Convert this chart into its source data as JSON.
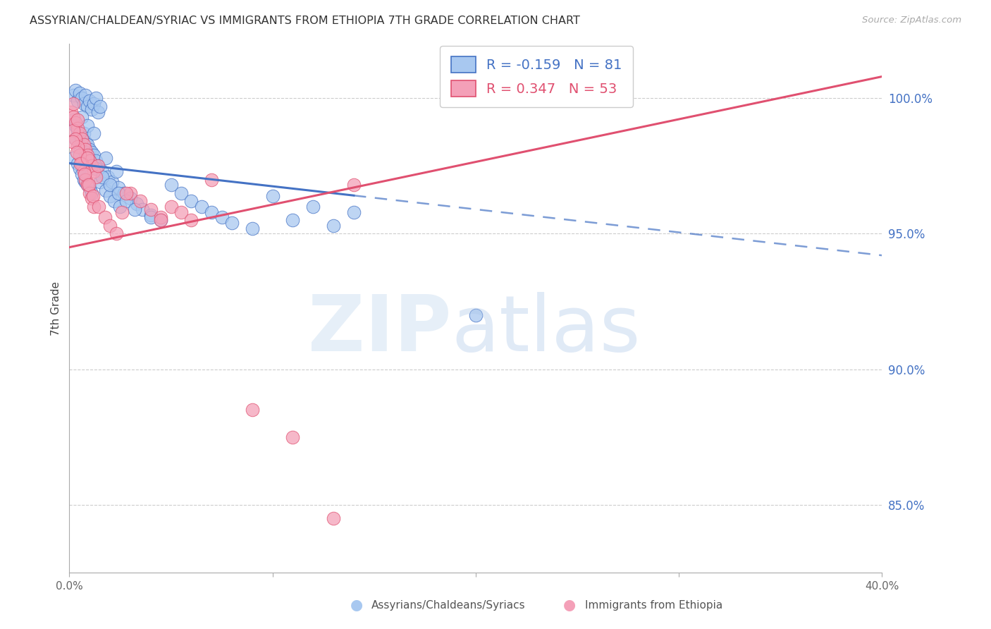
{
  "title": "ASSYRIAN/CHALDEAN/SYRIAC VS IMMIGRANTS FROM ETHIOPIA 7TH GRADE CORRELATION CHART",
  "source": "Source: ZipAtlas.com",
  "ylabel": "7th Grade",
  "right_yticks": [
    85.0,
    90.0,
    95.0,
    100.0
  ],
  "right_ytick_labels": [
    "85.0%",
    "90.0%",
    "95.0%",
    "100.0%"
  ],
  "xmin": 0.0,
  "xmax": 40.0,
  "ymin": 82.5,
  "ymax": 102.0,
  "blue_label": "Assyrians/Chaldeans/Syriacs",
  "pink_label": "Immigrants from Ethiopia",
  "blue_R": -0.159,
  "blue_N": 81,
  "pink_R": 0.347,
  "pink_N": 53,
  "blue_color": "#A8C8F0",
  "pink_color": "#F4A0B8",
  "blue_line_color": "#4472C4",
  "pink_line_color": "#E05070",
  "right_axis_color": "#4472C4",
  "background_color": "#FFFFFF",
  "blue_trend_x0": 0.0,
  "blue_trend_y0": 97.6,
  "blue_trend_x1": 40.0,
  "blue_trend_y1": 94.2,
  "blue_solid_end_x": 14.0,
  "pink_trend_x0": 0.0,
  "pink_trend_y0": 94.5,
  "pink_trend_x1": 40.0,
  "pink_trend_y1": 100.8,
  "blue_scatter_x": [
    0.2,
    0.3,
    0.4,
    0.5,
    0.6,
    0.7,
    0.8,
    0.9,
    1.0,
    1.1,
    1.2,
    1.3,
    1.4,
    1.5,
    0.2,
    0.3,
    0.4,
    0.5,
    0.6,
    0.7,
    0.8,
    0.9,
    1.0,
    1.1,
    1.2,
    1.3,
    1.4,
    0.2,
    0.4,
    0.5,
    0.6,
    0.7,
    0.8,
    0.9,
    1.0,
    1.1,
    1.5,
    1.8,
    2.0,
    2.2,
    2.5,
    1.6,
    1.9,
    2.1,
    2.4,
    2.7,
    3.0,
    3.3,
    3.6,
    4.0,
    4.5,
    5.0,
    5.5,
    6.0,
    6.5,
    7.0,
    7.5,
    8.0,
    9.0,
    10.0,
    11.0,
    12.0,
    13.0,
    14.0,
    0.3,
    0.5,
    0.8,
    1.0,
    1.3,
    1.6,
    2.0,
    2.4,
    2.8,
    3.2,
    4.0,
    0.6,
    0.9,
    1.2,
    1.8,
    2.3,
    20.0
  ],
  "blue_scatter_y": [
    100.1,
    100.3,
    99.9,
    100.2,
    100.0,
    99.8,
    100.1,
    99.7,
    99.9,
    99.6,
    99.8,
    100.0,
    99.5,
    99.7,
    99.2,
    99.0,
    98.8,
    98.6,
    98.5,
    98.7,
    98.4,
    98.3,
    98.1,
    98.0,
    97.9,
    97.7,
    97.5,
    97.8,
    97.6,
    97.4,
    97.2,
    97.0,
    96.9,
    96.8,
    96.7,
    96.5,
    96.9,
    96.6,
    96.4,
    96.2,
    96.0,
    97.3,
    97.1,
    96.9,
    96.7,
    96.5,
    96.3,
    96.1,
    95.9,
    95.7,
    95.5,
    96.8,
    96.5,
    96.2,
    96.0,
    95.8,
    95.6,
    95.4,
    95.2,
    96.4,
    95.5,
    96.0,
    95.3,
    95.8,
    98.5,
    98.2,
    98.0,
    97.7,
    97.4,
    97.1,
    96.8,
    96.5,
    96.2,
    95.9,
    95.6,
    99.3,
    99.0,
    98.7,
    97.8,
    97.3,
    92.0
  ],
  "pink_scatter_x": [
    0.1,
    0.2,
    0.3,
    0.4,
    0.5,
    0.6,
    0.7,
    0.8,
    0.9,
    1.0,
    1.1,
    1.2,
    1.3,
    0.2,
    0.3,
    0.4,
    0.5,
    0.6,
    0.7,
    0.8,
    0.9,
    1.0,
    1.1,
    1.2,
    0.15,
    0.35,
    0.55,
    0.75,
    0.95,
    1.15,
    1.45,
    1.75,
    2.0,
    2.3,
    2.6,
    3.0,
    3.5,
    4.0,
    4.5,
    5.0,
    5.5,
    6.0,
    7.0,
    14.0,
    0.2,
    0.4,
    0.9,
    1.4,
    2.8,
    4.5,
    9.0,
    11.0,
    13.0
  ],
  "pink_scatter_y": [
    99.5,
    99.3,
    99.1,
    98.9,
    98.7,
    98.5,
    98.3,
    98.1,
    97.9,
    97.7,
    97.5,
    97.3,
    97.1,
    98.8,
    98.5,
    98.2,
    97.9,
    97.6,
    97.3,
    97.0,
    96.8,
    96.5,
    96.3,
    96.0,
    98.4,
    98.0,
    97.6,
    97.2,
    96.8,
    96.4,
    96.0,
    95.6,
    95.3,
    95.0,
    95.8,
    96.5,
    96.2,
    95.9,
    95.6,
    96.0,
    95.8,
    95.5,
    97.0,
    96.8,
    99.8,
    99.2,
    97.8,
    97.5,
    96.5,
    95.5,
    88.5,
    87.5,
    84.5
  ]
}
